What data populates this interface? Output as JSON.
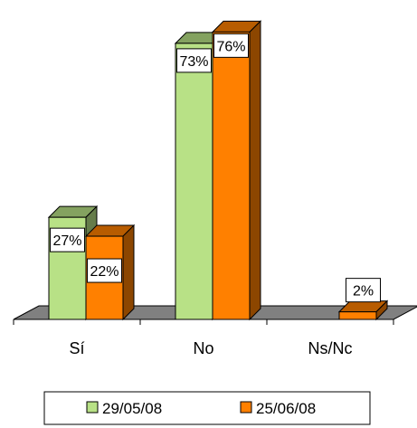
{
  "chart_data": {
    "type": "bar",
    "style": "3d-clustered-column",
    "categories": [
      "Sí",
      "No",
      "Ns/Nc"
    ],
    "series": [
      {
        "name": "29/05/08",
        "values": [
          27,
          73,
          0
        ],
        "labels": [
          "27%",
          "73%",
          ""
        ],
        "color": "#b8e186"
      },
      {
        "name": "25/06/08",
        "values": [
          22,
          76,
          2
        ],
        "labels": [
          "22%",
          "76%",
          "2%"
        ],
        "color": "#ff8000"
      }
    ],
    "ylim": [
      0,
      80
    ],
    "unit": "%",
    "grid": false,
    "legend_position": "bottom",
    "floor_color": "#808080"
  }
}
